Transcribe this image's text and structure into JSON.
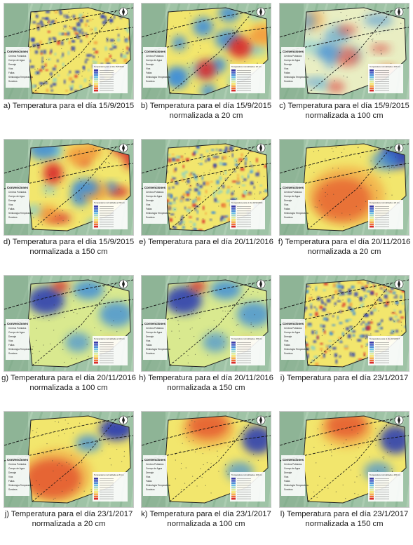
{
  "figure": {
    "panels": [
      {
        "id": "a",
        "line1": "a) Temperatura para el día 15/9/2015",
        "line2": "",
        "pattern": "speckle-blue",
        "legend_title": "Temperatura para el día 15/9/2015"
      },
      {
        "id": "b",
        "line1": "b) Temperatura para el día 15/9/2015",
        "line2": "normalizada a 20 cm",
        "pattern": "patchy-hot",
        "legend_title": "Temperatura normalizada a 20 cm"
      },
      {
        "id": "c",
        "line1": "c) Temperatura para el día 15/9/2015",
        "line2": "normalizada a 100 cm",
        "pattern": "pale-mixed",
        "legend_title": "Temperatura normalizada a 100 cm"
      },
      {
        "id": "d",
        "line1": "d) Temperatura para el día 15/9/2015",
        "line2": "normalizada a 150 cm",
        "pattern": "patchy-hot",
        "legend_title": "Temperatura normalizada a 150 cm"
      },
      {
        "id": "e",
        "line1": "e) Temperatura para el día 20/11/2016",
        "line2": "",
        "pattern": "speckle-mixed",
        "legend_title": "Temperatura para el día 20/11/2016"
      },
      {
        "id": "f",
        "line1": "f) Temperatura para el día 20/11/2016",
        "line2": "normalizada a 20 cm",
        "pattern": "hot-center",
        "legend_title": "Temperatura normalizada a 20 cm"
      },
      {
        "id": "g",
        "line1": "g) Temperatura para el día 20/11/2016",
        "line2": "normalizada a 100 cm",
        "pattern": "blue-cold",
        "legend_title": "Temperatura normalizada a 100 cm"
      },
      {
        "id": "h",
        "line1": "h) Temperatura para el día 20/11/2016",
        "line2": "normalizada a 150 cm",
        "pattern": "blue-cold",
        "legend_title": "Temperatura normalizada a 150 cm"
      },
      {
        "id": "i",
        "line1": "i) Temperatura para el día 23/1/2017",
        "line2": "",
        "pattern": "speckle-mixed",
        "legend_title": "Temperatura para el día 23/1/2017"
      },
      {
        "id": "j",
        "line1": "j) Temperatura para el día 23/1/2017",
        "line2": "normalizada a 20 cm",
        "pattern": "hot-left",
        "legend_title": "Temperatura normalizada a 20 cm"
      },
      {
        "id": "k",
        "line1": "k) Temperatura para el día 23/1/2017",
        "line2": "normalizada a 100 cm",
        "pattern": "hot-top",
        "legend_title": "Temperatura normalizada a 100 cm"
      },
      {
        "id": "l",
        "line1": "l) Temperatura para el día 23/1/2017",
        "line2": "normalizada a 150 cm",
        "pattern": "hot-top",
        "legend_title": "Temperatura normalizada a 150 cm"
      }
    ],
    "legend": {
      "heading": "Convenciones",
      "items": [
        "Centros Poblados",
        "Cuerpo de Agua",
        "Drenaje",
        "Vías",
        "Fallas",
        "Simbología Temperatura",
        "Sondeos"
      ],
      "ramp_colors": [
        "#3b3aa7",
        "#4a62c8",
        "#4f8fd9",
        "#6cc0e6",
        "#a6d9c6",
        "#dcec9e",
        "#f6e36a",
        "#f7b04a",
        "#ee6c35",
        "#d92a2a"
      ]
    },
    "colors": {
      "terrain": "#9fc3a6",
      "cold": "#2e3fb0",
      "cool": "#3f8fd8",
      "mild": "#f2e66d",
      "warm": "#f29a3c",
      "hot": "#d8252a"
    }
  }
}
